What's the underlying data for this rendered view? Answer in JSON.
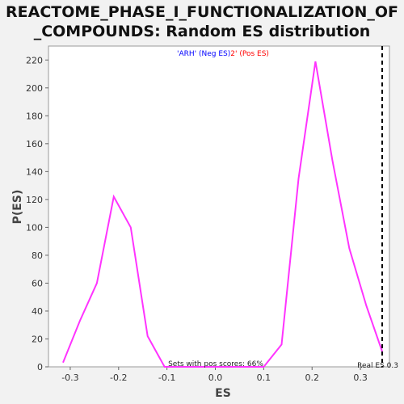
{
  "chart_data": {
    "type": "line",
    "title_line1": "REACTOME_PHASE_I_FUNCTIONALIZATION_OF",
    "title_line2": "_COMPOUNDS: Random ES distribution",
    "xlabel": "ES",
    "ylabel": "P(ES)",
    "xlim": [
      -0.345,
      0.36
    ],
    "ylim": [
      0,
      230
    ],
    "xticks": [
      -0.3,
      -0.2,
      -0.1,
      0.0,
      0.1,
      0.2,
      0.3
    ],
    "xtick_labels": [
      "-0.3",
      "-0.2",
      "-0.1",
      "0.0",
      "0.1",
      "0.2",
      "0.3"
    ],
    "yticks": [
      0,
      20,
      40,
      60,
      80,
      100,
      120,
      140,
      160,
      180,
      200,
      220
    ],
    "legend": {
      "neg_label": "'ARH' (Neg ES)",
      "pos_label": "2' (Pos ES)",
      "neg_color": "#0000ff",
      "pos_color": "#ff0000"
    },
    "series_color": "#ff33ff",
    "series": [
      {
        "x": [
          -0.315,
          -0.28,
          -0.245,
          -0.21,
          -0.175,
          -0.14,
          -0.105,
          0.0,
          0.1,
          0.137,
          0.172,
          0.207,
          0.242,
          0.277,
          0.312,
          0.345
        ],
        "y": [
          3,
          33,
          60,
          122,
          100,
          22,
          0,
          0,
          0,
          16,
          135,
          219,
          148,
          85,
          44,
          11
        ]
      }
    ],
    "real_es": 0.345,
    "real_es_label": "Real ES 0.3",
    "annotation": "Sets with pos scores: 66%"
  }
}
